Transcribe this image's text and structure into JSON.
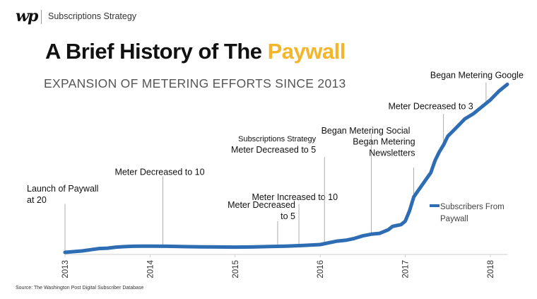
{
  "header": {
    "logo": "wp",
    "section": "Subscriptions Strategy"
  },
  "title_main": "A Brief History of The ",
  "title_accent": "Paywall",
  "subtitle": "EXPANSION OF METERING EFFORTS SINCE 2013",
  "source": "Source: The Washington Post Digital Subscriber Database",
  "colors": {
    "accent": "#f5b52a",
    "line": "#2e6db4",
    "text": "#111111"
  },
  "chart_data": {
    "type": "line",
    "title": "",
    "xlabel": "",
    "ylabel": "",
    "xlim": [
      2013.0,
      2018.2
    ],
    "ylim": [
      0,
      100
    ],
    "x_ticks": [
      "2013",
      "2014",
      "2015",
      "2016",
      "2017",
      "2018"
    ],
    "y_axis": "none",
    "grid": false,
    "legend": {
      "placement": "right",
      "entries": [
        "Subscribers From Paywall"
      ]
    },
    "series": [
      {
        "name": "Subscribers From Paywall",
        "color": "#2e6db4",
        "x": [
          2013.0,
          2013.1,
          2013.2,
          2013.3,
          2013.4,
          2013.5,
          2013.6,
          2013.7,
          2013.8,
          2013.9,
          2014.0,
          2014.2,
          2014.4,
          2014.6,
          2014.8,
          2015.0,
          2015.2,
          2015.4,
          2015.6,
          2015.8,
          2016.0,
          2016.1,
          2016.2,
          2016.3,
          2016.4,
          2016.5,
          2016.6,
          2016.7,
          2016.75,
          2016.8,
          2016.85,
          2016.9,
          2016.95,
          2017.0,
          2017.05,
          2017.1,
          2017.2,
          2017.3,
          2017.35,
          2017.4,
          2017.45,
          2017.5,
          2017.6,
          2017.7,
          2017.8,
          2017.9,
          2018.0,
          2018.1,
          2018.2
        ],
        "y": [
          0.0,
          0.4,
          0.8,
          1.5,
          2.2,
          2.4,
          3.0,
          3.3,
          3.5,
          3.6,
          3.6,
          3.5,
          3.3,
          3.2,
          3.1,
          3.0,
          3.1,
          3.4,
          3.6,
          4.0,
          4.5,
          5.5,
          6.5,
          7.0,
          8.0,
          9.5,
          10.5,
          11.0,
          12.0,
          13.0,
          15.0,
          15.5,
          16.0,
          18.0,
          24.0,
          32.0,
          39.0,
          46.0,
          53.0,
          58.0,
          62.0,
          67.0,
          72.0,
          77.0,
          80.0,
          84.0,
          88.0,
          93.0,
          97.0
        ]
      }
    ],
    "annotations": [
      {
        "x": 2013.0,
        "lines": [
          "Launch of Paywall",
          "at 20"
        ]
      },
      {
        "x": 2014.15,
        "lines": [
          "Meter Decreased to 10"
        ]
      },
      {
        "x": 2015.5,
        "lines": [
          "Meter Decreased",
          "to 5"
        ]
      },
      {
        "x": 2015.75,
        "lines": [
          "Meter Increased to 10"
        ]
      },
      {
        "x": 2016.05,
        "lines": [
          "Subscriptions Strategy",
          "Meter Decreased to 5"
        ]
      },
      {
        "x": 2016.6,
        "lines": [
          "Began Metering Social"
        ]
      },
      {
        "x": 2017.1,
        "lines": [
          "Began Metering",
          "Newsletters"
        ]
      },
      {
        "x": 2017.45,
        "lines": [
          "Meter Decreased to 3"
        ]
      },
      {
        "x": 2017.95,
        "lines": [
          "Began Metering Google"
        ]
      }
    ]
  }
}
